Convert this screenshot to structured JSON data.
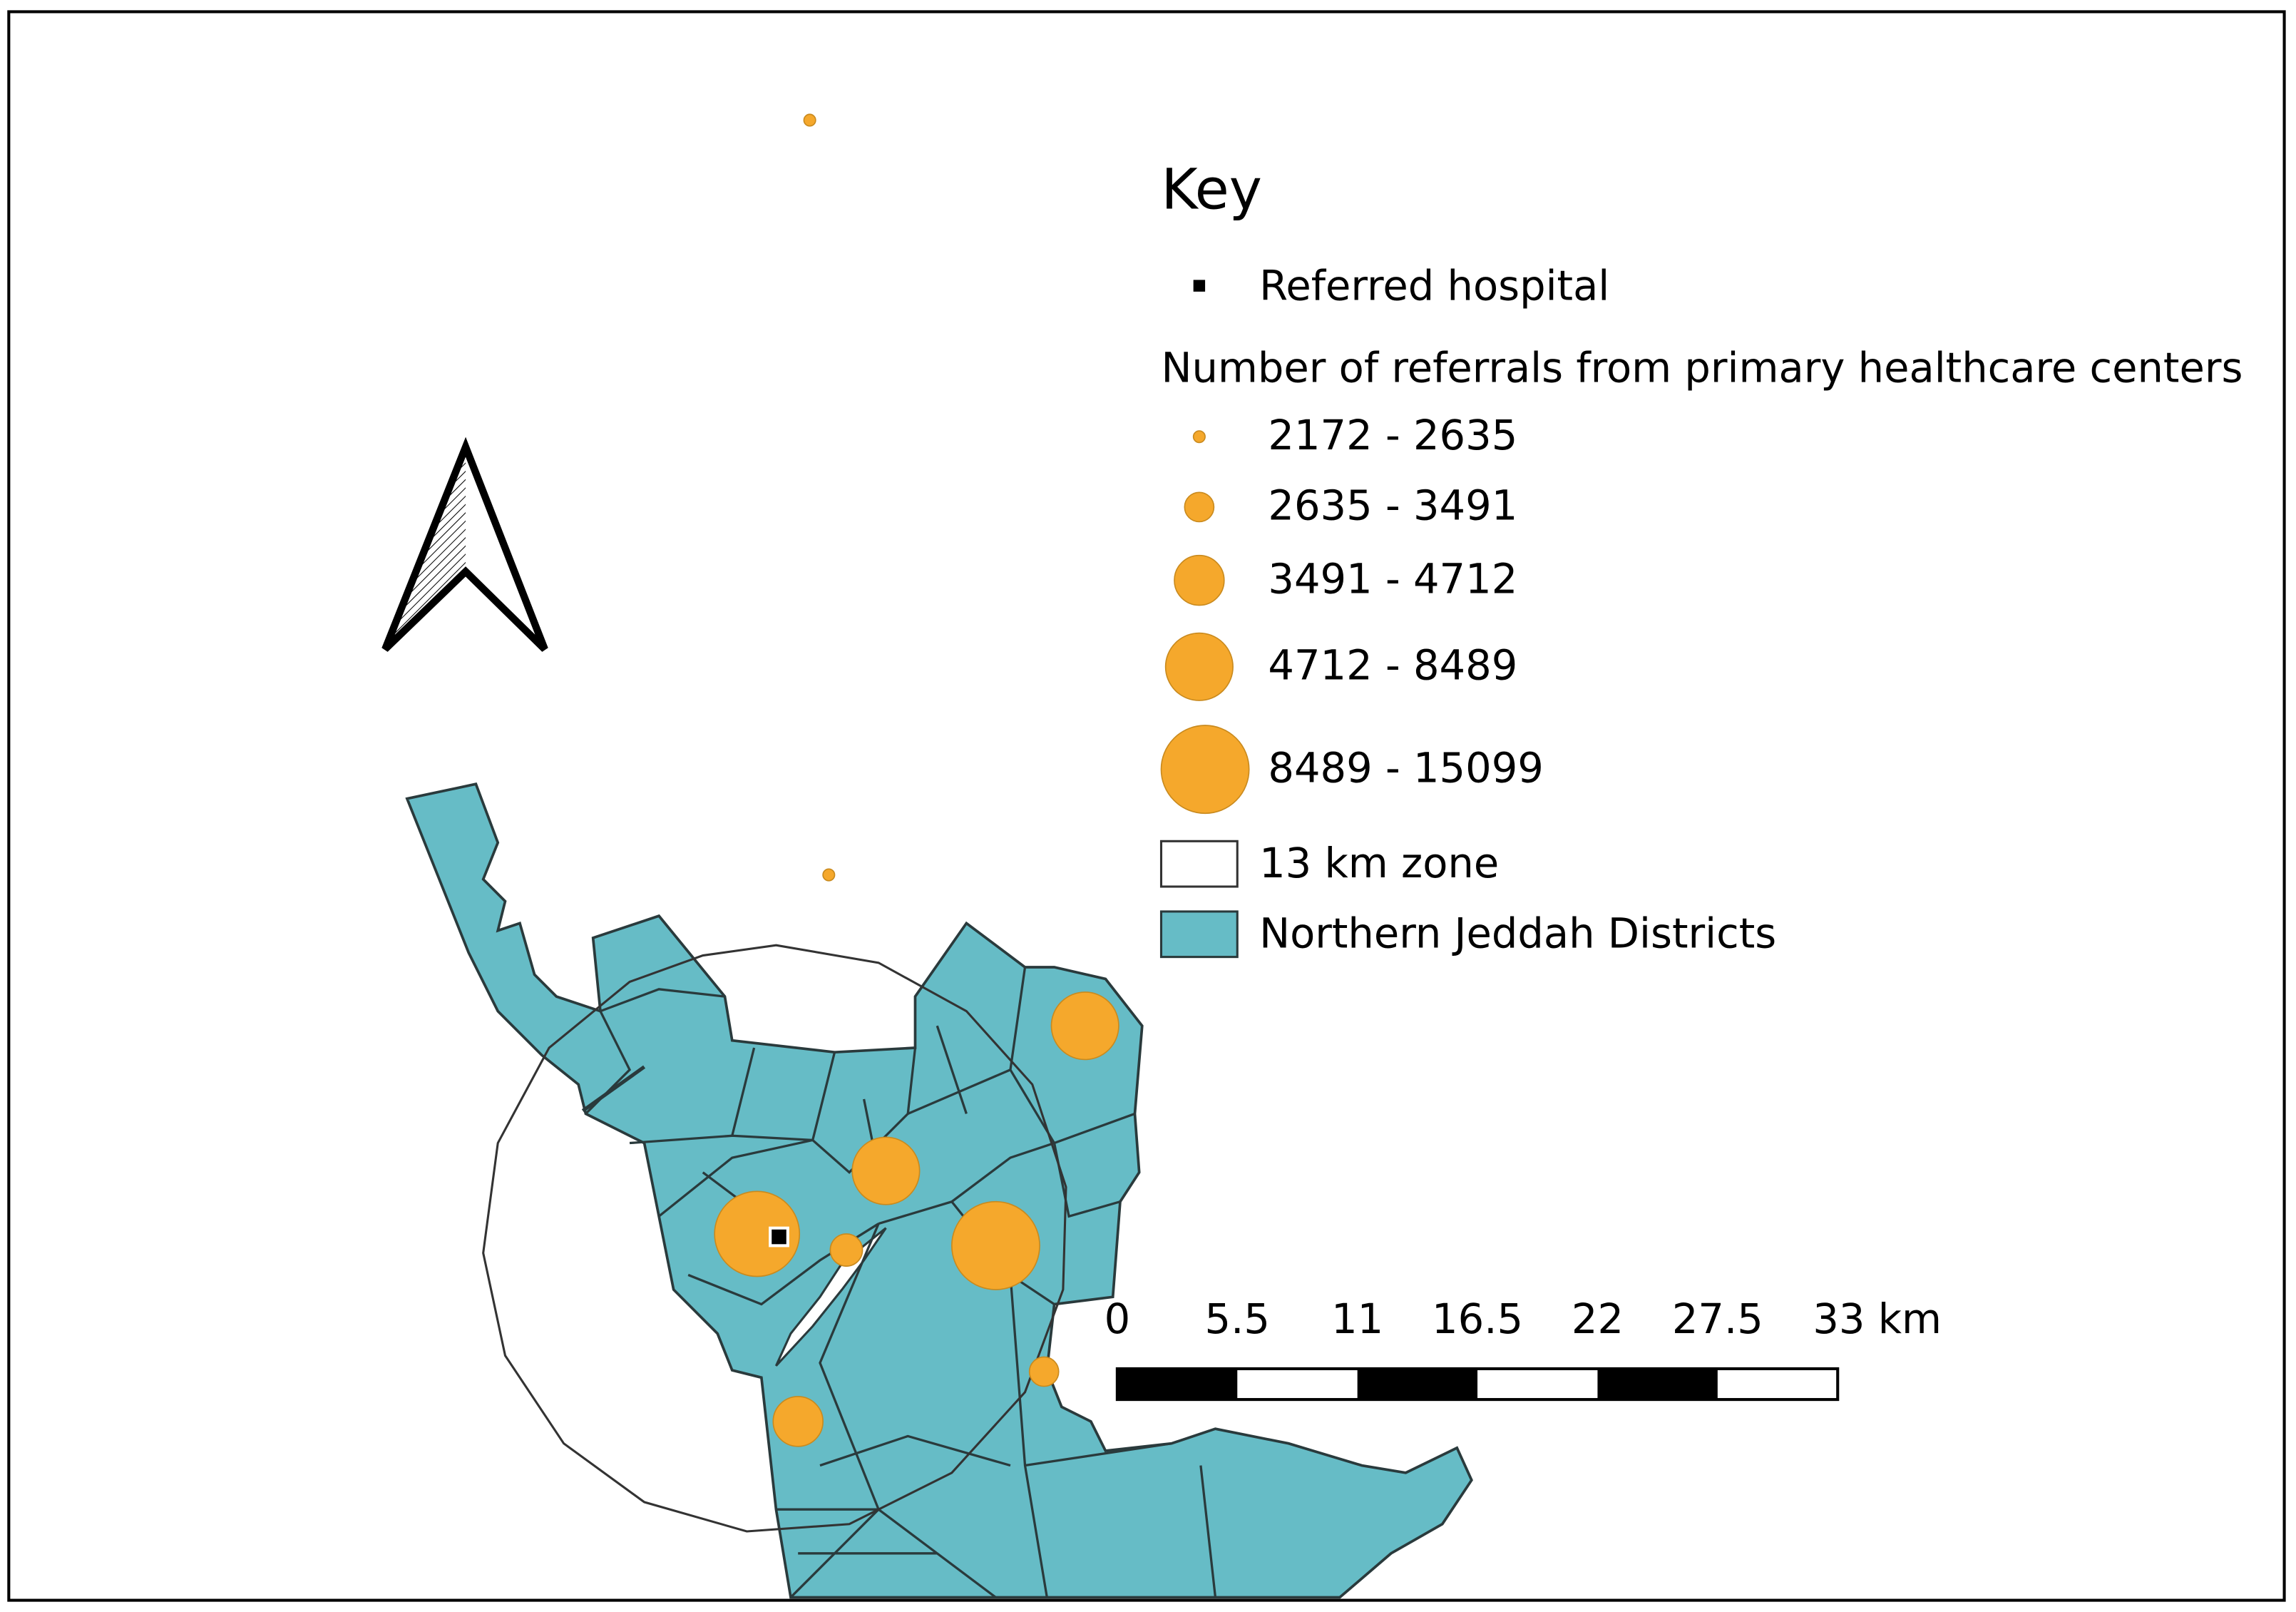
{
  "legend": {
    "title": "Key",
    "hospital": "Referred hospital",
    "referrals_title": "Number of referrals from primary healthcare centers",
    "classes": [
      "2172 - 2635",
      "2635 - 3491",
      "3491 - 4712",
      "4712 - 8489",
      "8489 - 15099"
    ],
    "zone": "13 km zone",
    "districts": "Northern Jeddah Districts"
  },
  "scale_bar": {
    "labels": [
      "0",
      "5.5",
      "11",
      "16.5",
      "22",
      "27.5",
      "33 km"
    ]
  }
}
